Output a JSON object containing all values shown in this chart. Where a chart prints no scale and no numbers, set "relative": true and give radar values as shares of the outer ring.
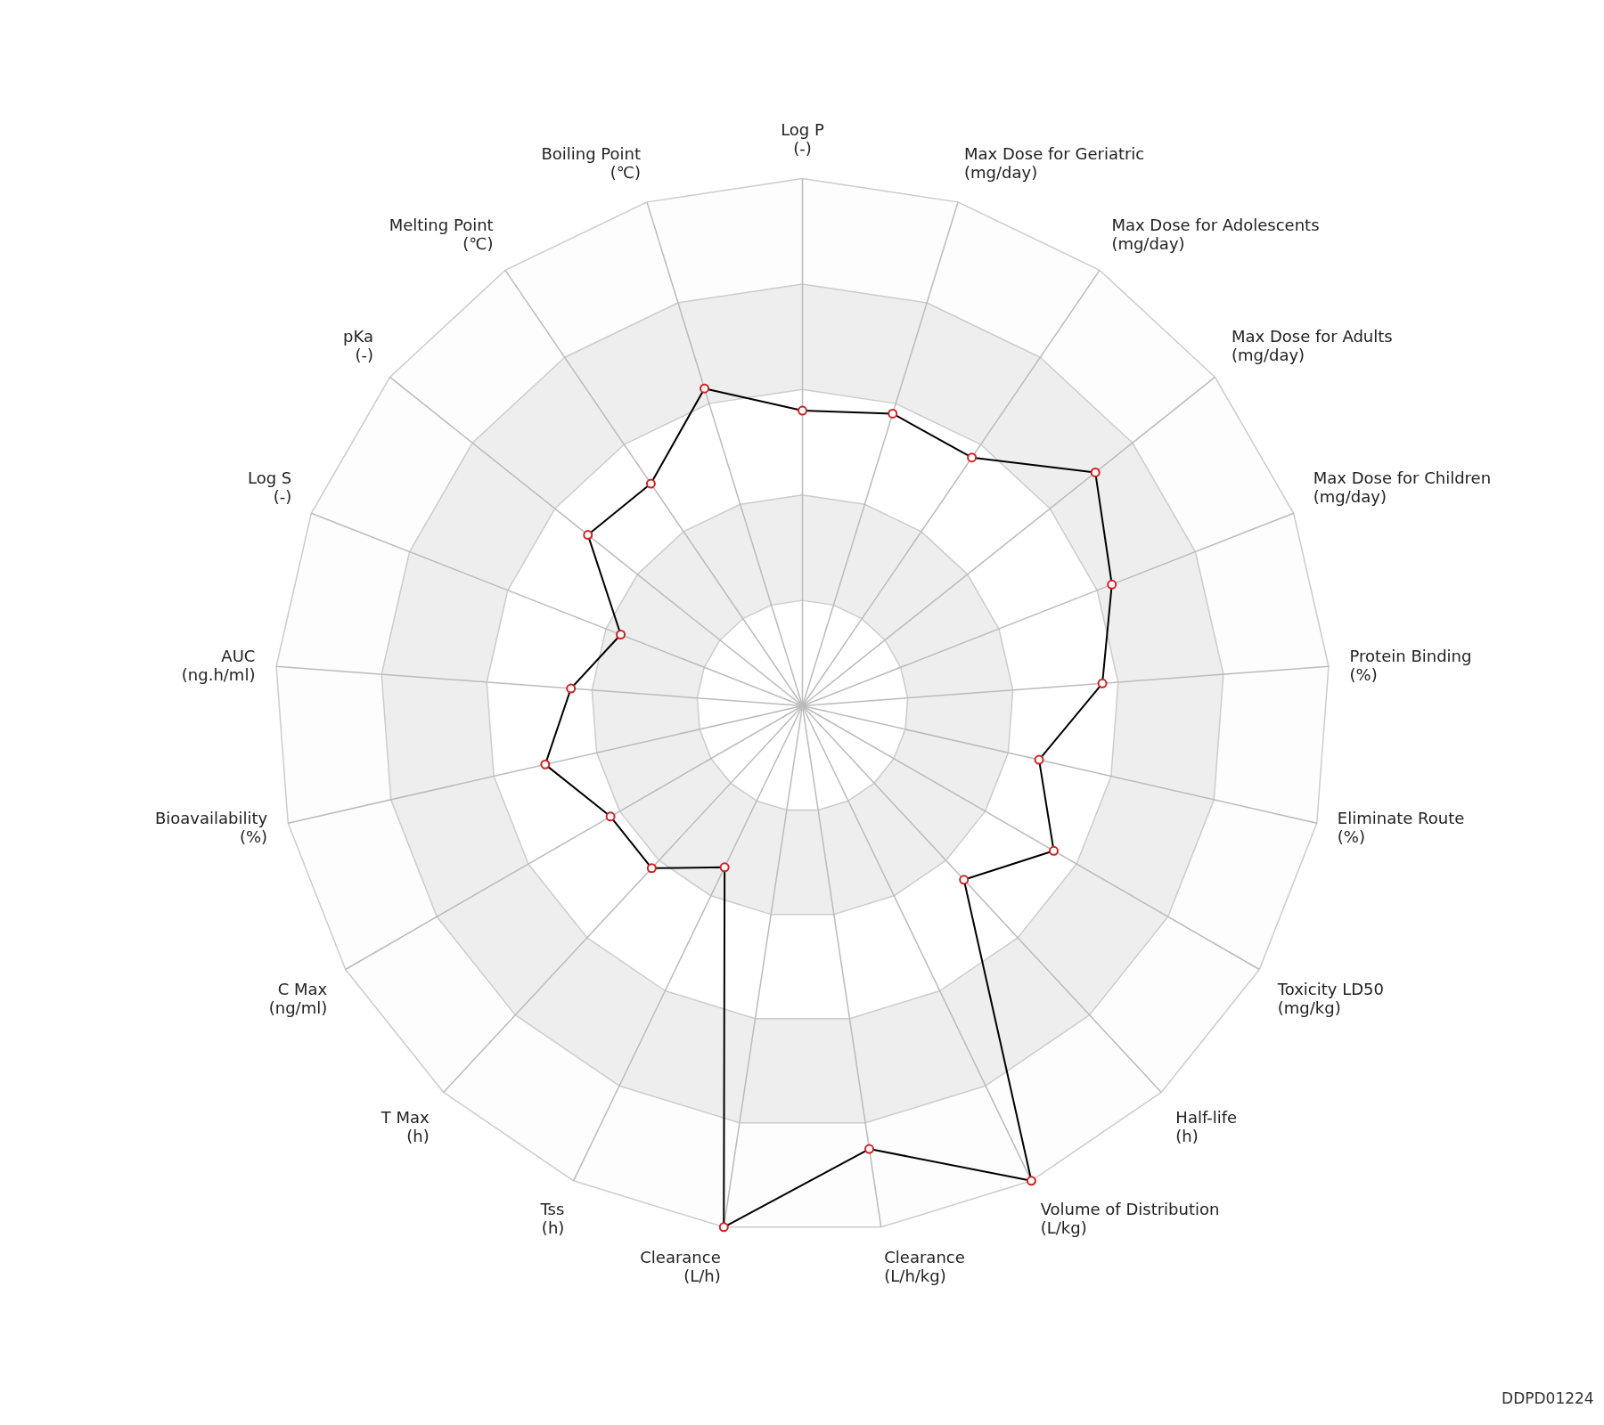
{
  "chart_data": {
    "type": "radar",
    "relative": true,
    "grid": true,
    "marker": "circle",
    "categories": [
      "Log P\n(-)",
      "Max Dose for Geriatric\n(mg/day)",
      "Max Dose for Adolescents\n(mg/day)",
      "Max Dose for Adults\n(mg/day)",
      "Max Dose for Children\n(mg/day)",
      "Protein Binding\n(%)",
      "Eliminate Route\n(%)",
      "Toxicity LD50\n(mg/kg)",
      "Half-life\n(h)",
      "Volume of Distribution\n(L/kg)",
      "Clearance\n(L/h/kg)",
      "Clearance\n(L/h)",
      "Tss\n(h)",
      "T Max\n(h)",
      "C Max\n(ng/ml)",
      "Bioavailability\n(%)",
      "AUC\n(ng.h/ml)",
      "Log S\n(-)",
      "pKa\n(-)",
      "Melting Point\n(℃)",
      "Boiling Point\n(℃)"
    ],
    "series": [
      {
        "color": "#000000",
        "values": [
          0.56,
          0.58,
          0.57,
          0.71,
          0.63,
          0.57,
          0.46,
          0.55,
          0.45,
          1.0,
          0.85,
          1.0,
          0.34,
          0.42,
          0.42,
          0.5,
          0.44,
          0.37,
          0.52,
          0.51,
          0.63
        ]
      }
    ],
    "annotations": [
      "DDPD01224"
    ]
  }
}
